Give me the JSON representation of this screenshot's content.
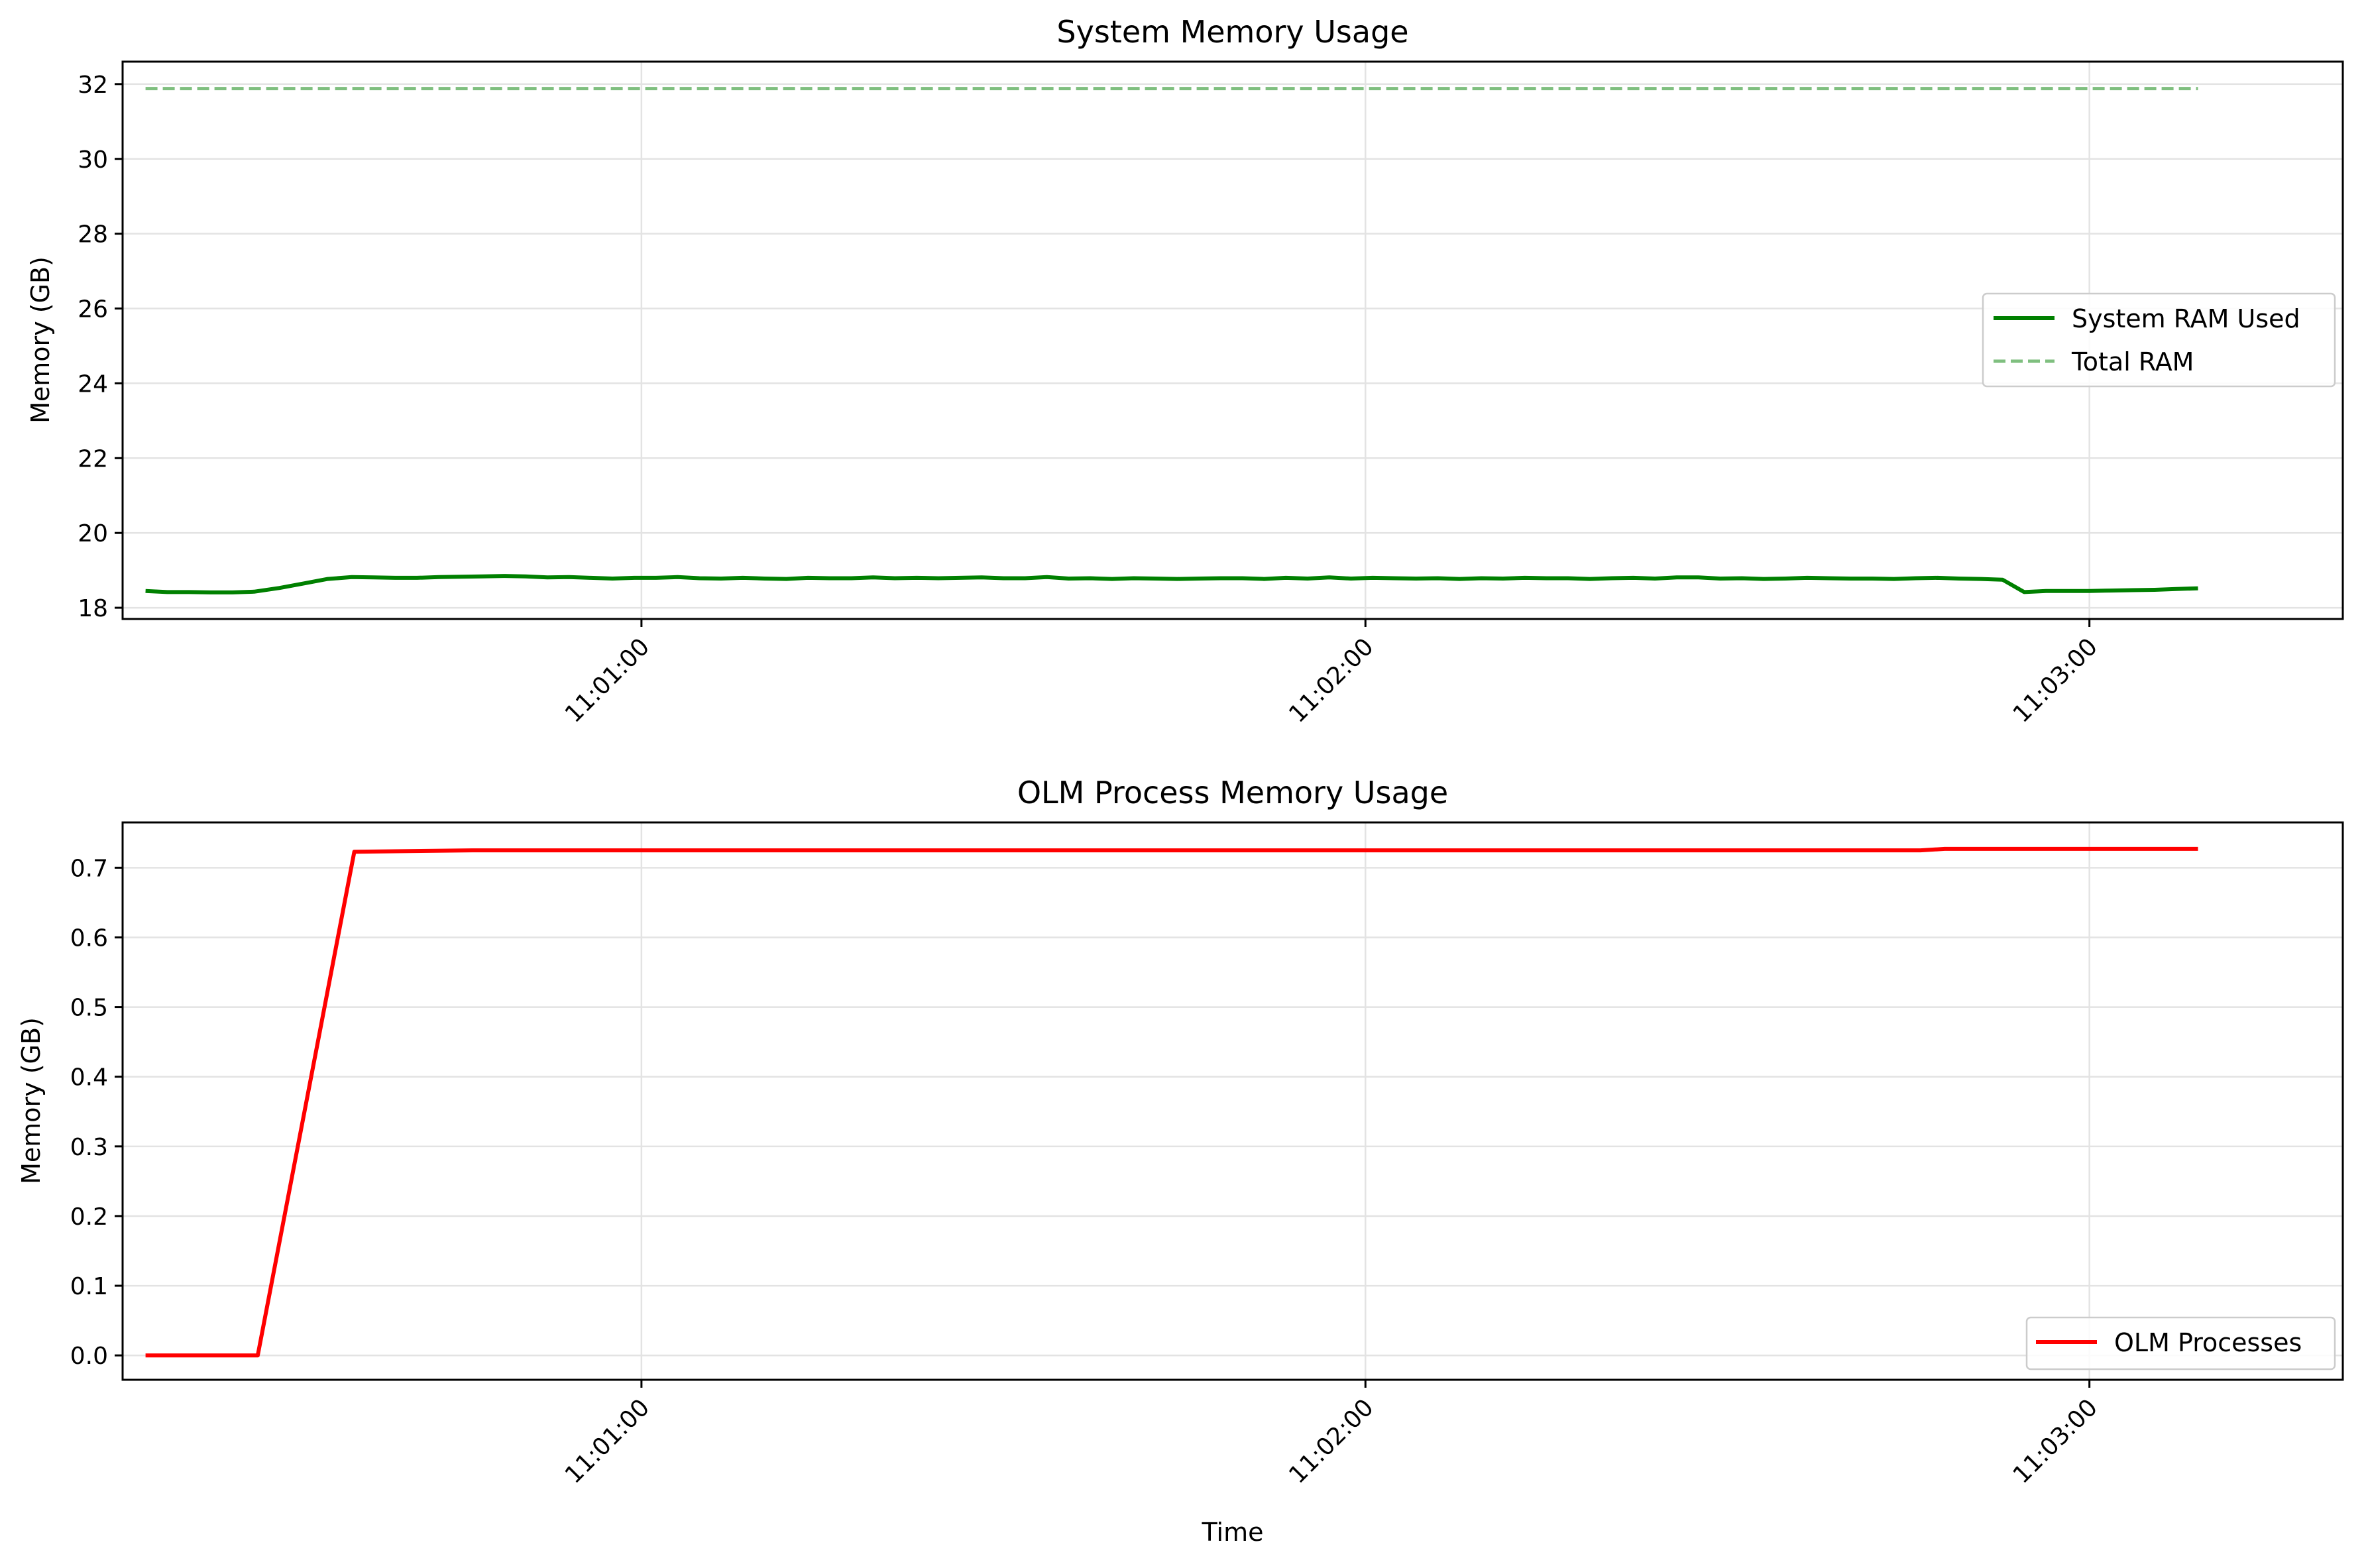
{
  "chart_data": [
    {
      "type": "line",
      "title": "System Memory Usage",
      "xlabel": "",
      "ylabel": "Memory (GB)",
      "xlim": [
        "11:00:17",
        "11:03:21"
      ],
      "ylim": [
        17.7,
        32.6
      ],
      "yticks": [
        18,
        20,
        22,
        24,
        26,
        28,
        30,
        32
      ],
      "xticks": [
        "11:01:00",
        "11:02:00",
        "11:03:00"
      ],
      "grid": true,
      "legend_position": "center-right",
      "colors": {
        "used": "#008000",
        "total": "#7fbf7f"
      },
      "series": [
        {
          "name": "System RAM Used",
          "style": "solid",
          "color": "#008000",
          "x": [
            "11:00:18.9",
            "11:00:20.7",
            "11:00:22.5",
            "11:00:24.3",
            "11:00:26.1",
            "11:00:27.9",
            "11:00:30",
            "11:00:32",
            "11:00:34",
            "11:00:36",
            "11:00:37.8",
            "11:00:39.6",
            "11:00:41.4",
            "11:00:43.2",
            "11:00:45",
            "11:00:46.8",
            "11:00:48.6",
            "11:00:50.4",
            "11:00:52.2",
            "11:00:54",
            "11:00:55.8",
            "11:00:57.6",
            "11:00:59.4",
            "11:01:01.2",
            "11:01:03",
            "11:01:04.8",
            "11:01:06.6",
            "11:01:08.4",
            "11:01:10.2",
            "11:01:12",
            "11:01:13.8",
            "11:01:15.6",
            "11:01:17.4",
            "11:01:19.2",
            "11:01:21",
            "11:01:22.8",
            "11:01:24.6",
            "11:01:26.4",
            "11:01:28.2",
            "11:01:30",
            "11:01:31.8",
            "11:01:33.6",
            "11:01:35.4",
            "11:01:37.2",
            "11:01:39",
            "11:01:40.8",
            "11:01:42.6",
            "11:01:44.4",
            "11:01:46.2",
            "11:01:48",
            "11:01:49.8",
            "11:01:51.6",
            "11:01:53.4",
            "11:01:55.2",
            "11:01:57",
            "11:01:58.8",
            "11:02:00.6",
            "11:02:02.4",
            "11:02:04.2",
            "11:02:06",
            "11:02:07.8",
            "11:02:09.6",
            "11:02:11.4",
            "11:02:13.2",
            "11:02:15",
            "11:02:16.8",
            "11:02:18.6",
            "11:02:20.4",
            "11:02:22.2",
            "11:02:24",
            "11:02:25.8",
            "11:02:27.6",
            "11:02:29.4",
            "11:02:31.2",
            "11:02:33",
            "11:02:34.8",
            "11:02:36.6",
            "11:02:38.4",
            "11:02:40.2",
            "11:02:42",
            "11:02:43.8",
            "11:02:45.6",
            "11:02:47.4",
            "11:02:49.2",
            "11:02:51",
            "11:02:52.8",
            "11:02:54.6",
            "11:02:56.4",
            "11:02:58.2",
            "11:03:00",
            "11:03:01.8",
            "11:03:03.6",
            "11:03:05.4",
            "11:03:07.2",
            "11:03:09"
          ],
          "y": [
            18.45,
            18.42,
            18.42,
            18.41,
            18.41,
            18.43,
            18.53,
            18.65,
            18.77,
            18.82,
            18.81,
            18.8,
            18.8,
            18.82,
            18.83,
            18.84,
            18.85,
            18.84,
            18.81,
            18.82,
            18.8,
            18.78,
            18.8,
            18.8,
            18.82,
            18.79,
            18.78,
            18.8,
            18.78,
            18.77,
            18.8,
            18.79,
            18.79,
            18.81,
            18.79,
            18.8,
            18.79,
            18.8,
            18.81,
            18.79,
            18.79,
            18.82,
            18.78,
            18.79,
            18.77,
            18.79,
            18.78,
            18.77,
            18.78,
            18.79,
            18.79,
            18.77,
            18.8,
            18.78,
            18.81,
            18.78,
            18.8,
            18.79,
            18.78,
            18.79,
            18.77,
            18.79,
            18.78,
            18.8,
            18.79,
            18.79,
            18.77,
            18.79,
            18.8,
            18.78,
            18.81,
            18.81,
            18.78,
            18.79,
            18.77,
            18.78,
            18.8,
            18.79,
            18.78,
            18.78,
            18.77,
            18.79,
            18.8,
            18.78,
            18.77,
            18.75,
            18.42,
            18.45,
            18.45,
            18.45,
            18.46,
            18.47,
            18.48,
            18.5,
            18.52
          ]
        },
        {
          "name": "Total RAM",
          "style": "dashed",
          "color": "#7fbf7f",
          "x": [
            "11:00:18.9",
            "11:03:09"
          ],
          "y": [
            31.88,
            31.88
          ]
        }
      ]
    },
    {
      "type": "line",
      "title": "OLM Process Memory Usage",
      "xlabel": "Time",
      "ylabel": "Memory (GB)",
      "xlim": [
        "11:00:17",
        "11:03:21"
      ],
      "ylim": [
        -0.035,
        0.765
      ],
      "yticks": [
        0.0,
        0.1,
        0.2,
        0.3,
        0.4,
        0.5,
        0.6,
        0.7
      ],
      "xticks": [
        "11:01:00",
        "11:02:00",
        "11:03:00"
      ],
      "grid": true,
      "legend_position": "lower-right",
      "series": [
        {
          "name": "OLM Processes",
          "style": "solid",
          "color": "#ff0000",
          "x": [
            "11:00:18.9",
            "11:00:28.2",
            "11:00:36.2",
            "11:00:46",
            "11:01:00",
            "11:02:00",
            "11:02:46",
            "11:02:48",
            "11:03:00",
            "11:03:09"
          ],
          "y": [
            0.0,
            0.0,
            0.723,
            0.725,
            0.725,
            0.725,
            0.725,
            0.727,
            0.727,
            0.727
          ]
        }
      ]
    }
  ]
}
